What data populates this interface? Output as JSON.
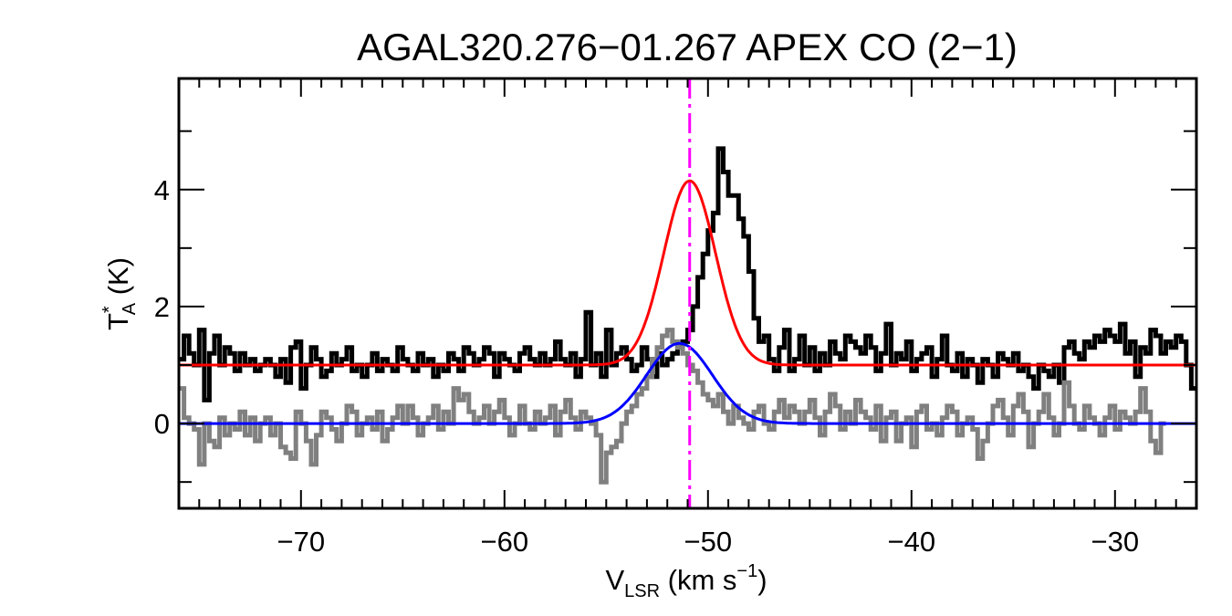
{
  "chart_data": {
    "type": "line",
    "title": "AGAL320.276−01.267  APEX CO (2−1)",
    "xlabel": {
      "main": "V",
      "sub": "LSR",
      "rest": " (km s",
      "sup": "−1",
      "close": ")"
    },
    "ylabel": {
      "main": "T",
      "sup": "*",
      "sub": "A",
      "rest": " (K)"
    },
    "xlim": [
      -76,
      -26
    ],
    "ylim": [
      -1.45,
      5.9
    ],
    "x_ticks": [
      -70,
      -60,
      -50,
      -40,
      -30
    ],
    "x_tick_labels": [
      "−70",
      "−60",
      "−50",
      "−40",
      "−30"
    ],
    "x_minor_step": 1,
    "y_ticks": [
      0,
      2,
      4
    ],
    "y_tick_labels": [
      "0",
      "2",
      "4"
    ],
    "y_minor_step": 1,
    "grid": false,
    "vline": {
      "x": -50.9,
      "color": "#ff00ff",
      "style": "dash-dot"
    },
    "channel_start": -76,
    "channel_width": 0.25,
    "series": [
      {
        "name": "spectrum-offset",
        "color": "#000000",
        "style": "histogram",
        "values": [
          1.1,
          1.5,
          1.2,
          1.0,
          1.6,
          0.4,
          1.2,
          1.5,
          1.0,
          1.3,
          1.2,
          0.9,
          1.2,
          1.0,
          1.1,
          0.9,
          1.0,
          1.1,
          1.0,
          0.8,
          1.1,
          0.7,
          1.3,
          1.4,
          0.6,
          1.0,
          1.3,
          1.1,
          0.8,
          0.9,
          1.2,
          1.0,
          1.1,
          1.3,
          0.9,
          1.0,
          0.8,
          1.0,
          1.2,
          0.9,
          1.1,
          1.0,
          0.9,
          1.3,
          1.1,
          1.0,
          0.9,
          1.2,
          1.0,
          1.1,
          0.8,
          1.0,
          0.9,
          1.2,
          1.1,
          0.9,
          1.3,
          1.2,
          1.0,
          1.1,
          1.3,
          1.2,
          0.8,
          1.2,
          1.1,
          1.0,
          0.9,
          1.2,
          1.3,
          1.1,
          1.0,
          1.2,
          1.0,
          1.1,
          1.4,
          1.1,
          1.0,
          1.2,
          0.8,
          1.1,
          1.9,
          1.0,
          1.2,
          0.8,
          1.6,
          1.0,
          1.2,
          1.3,
          1.1,
          0.9,
          1.0,
          1.3,
          1.1,
          0.8,
          1.2,
          1.0,
          1.1,
          1.2,
          1.3,
          1.4,
          1.6,
          2.0,
          2.5,
          2.9,
          3.3,
          3.6,
          4.7,
          4.3,
          3.9,
          3.9,
          3.5,
          3.2,
          2.6,
          1.8,
          1.4,
          1.5,
          1.1,
          0.9,
          1.3,
          1.6,
          0.9,
          1.1,
          1.5,
          1.0,
          1.3,
          0.9,
          1.2,
          1.0,
          1.4,
          1.2,
          1.1,
          1.5,
          1.4,
          1.3,
          1.2,
          1.5,
          1.3,
          0.9,
          1.2,
          1.7,
          1.0,
          1.2,
          1.1,
          1.4,
          0.9,
          1.1,
          1.2,
          1.3,
          0.8,
          1.1,
          1.5,
          1.0,
          0.9,
          1.2,
          0.8,
          1.1,
          1.0,
          0.7,
          1.1,
          1.0,
          0.8,
          1.2,
          1.1,
          1.0,
          1.2,
          0.9,
          1.0,
          0.8,
          0.6,
          1.0,
          0.9,
          0.8,
          1.0,
          0.7,
          1.3,
          1.4,
          1.2,
          1.1,
          1.4,
          1.3,
          1.5,
          1.4,
          1.6,
          1.5,
          1.4,
          1.7,
          1.2,
          1.4,
          0.8,
          1.3,
          1.2,
          1.6,
          1.5,
          1.2,
          1.4,
          1.3,
          1.5,
          1.4,
          1.0,
          0.6
        ]
      },
      {
        "name": "spectrum",
        "color": "#808080",
        "style": "histogram",
        "values": [
          0.6,
          0.1,
          0.0,
          -0.1,
          -0.7,
          0.0,
          -0.3,
          -0.4,
          0.1,
          -0.2,
          0.0,
          -0.1,
          0.2,
          -0.2,
          0.1,
          -0.3,
          0.0,
          0.1,
          -0.2,
          0.0,
          -0.4,
          -0.5,
          -0.6,
          0.2,
          0.0,
          -0.3,
          -0.7,
          -0.2,
          0.2,
          0.1,
          -0.1,
          -0.3,
          0.0,
          0.3,
          0.2,
          -0.2,
          0.0,
          0.1,
          -0.1,
          0.2,
          -0.3,
          -0.1,
          0.1,
          0.3,
          0.0,
          0.3,
          0.1,
          -0.2,
          0.0,
          0.1,
          0.3,
          -0.1,
          0.2,
          0.0,
          0.6,
          0.4,
          0.5,
          0.2,
          0.0,
          0.1,
          0.3,
          0.0,
          0.2,
          0.4,
          0.1,
          -0.2,
          0.0,
          0.3,
          0.0,
          -0.1,
          0.2,
          0.0,
          0.1,
          0.3,
          -0.2,
          0.2,
          0.4,
          0.1,
          -0.1,
          0.2,
          0.1,
          0.0,
          -0.2,
          -1.0,
          -0.5,
          -0.4,
          -0.3,
          0.0,
          0.2,
          0.3,
          0.5,
          0.6,
          0.8,
          1.1,
          1.3,
          1.5,
          1.6,
          1.4,
          1.3,
          1.2,
          1.0,
          0.9,
          0.7,
          0.5,
          0.4,
          0.3,
          0.5,
          0.2,
          0.0,
          0.3,
          0.1,
          0.0,
          -0.1,
          0.2,
          0.3,
          0.0,
          -0.1,
          0.2,
          0.4,
          0.1,
          0.3,
          0.2,
          0.0,
          0.2,
          0.4,
          0.1,
          -0.2,
          0.2,
          0.5,
          0.3,
          -0.1,
          0.2,
          0.0,
          0.4,
          0.2,
          0.1,
          -0.1,
          0.3,
          -0.3,
          0.1,
          0.2,
          -0.3,
          0.0,
          0.1,
          -0.4,
          0.2,
          0.3,
          -0.1,
          0.0,
          -0.2,
          0.1,
          0.3,
          0.2,
          -0.2,
          0.0,
          0.1,
          -0.1,
          -0.6,
          -0.3,
          0.0,
          0.3,
          0.4,
          0.1,
          -0.2,
          0.3,
          0.5,
          0.2,
          -0.4,
          0.0,
          0.2,
          0.5,
          0.1,
          -0.2,
          0.0,
          0.7,
          0.3,
          0.0,
          -0.1,
          0.3,
          0.1,
          0.0,
          -0.2,
          0.1,
          0.3,
          -0.1,
          0.2,
          0.1,
          0.0,
          0.2,
          0.6,
          0.2,
          -0.3,
          -0.5,
          0.0
        ]
      },
      {
        "name": "gaussian-fit-offset",
        "color": "#ff0000",
        "style": "gaussian",
        "baseline": 1.0,
        "amplitude": 3.15,
        "center": -50.9,
        "fwhm": 3.0
      },
      {
        "name": "gaussian-fit",
        "color": "#0000ff",
        "style": "gaussian",
        "baseline": 0.0,
        "amplitude": 1.37,
        "center": -51.4,
        "fwhm": 3.8
      }
    ]
  }
}
